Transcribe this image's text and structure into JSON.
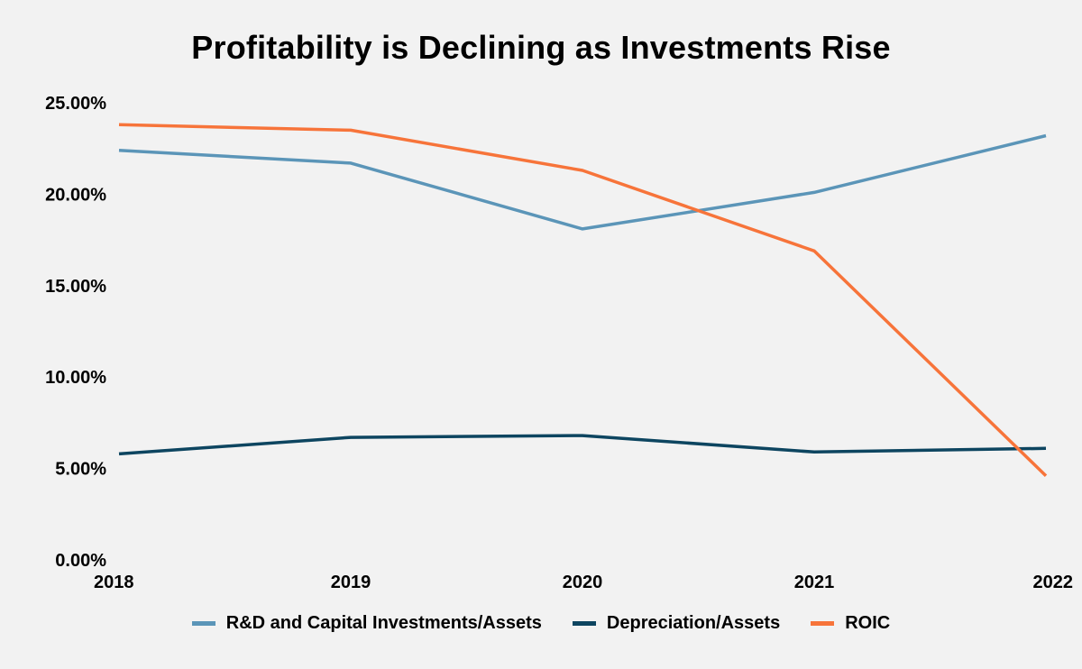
{
  "chart_data": {
    "type": "line",
    "title": "Profitability is Declining as Investments Rise",
    "xlabel": "",
    "ylabel": "",
    "categories": [
      "2018",
      "2019",
      "2020",
      "2021",
      "2022"
    ],
    "ylim": [
      0,
      25
    ],
    "yticks": [
      0,
      5,
      10,
      15,
      20,
      25
    ],
    "ytick_labels": [
      "0.00%",
      "5.00%",
      "10.00%",
      "15.00%",
      "20.00%",
      "25.00%"
    ],
    "grid": false,
    "legend_position": "bottom",
    "series": [
      {
        "name": "R&D and Capital Investments/Assets",
        "values": [
          22.4,
          21.7,
          18.1,
          20.1,
          23.2
        ],
        "color": "#5b95b8"
      },
      {
        "name": "Depreciation/Assets",
        "values": [
          5.8,
          6.7,
          6.8,
          5.9,
          6.1
        ],
        "color": "#0d4560"
      },
      {
        "name": "ROIC",
        "values": [
          23.8,
          23.5,
          21.3,
          16.9,
          4.6
        ],
        "color": "#f7743a"
      }
    ]
  }
}
